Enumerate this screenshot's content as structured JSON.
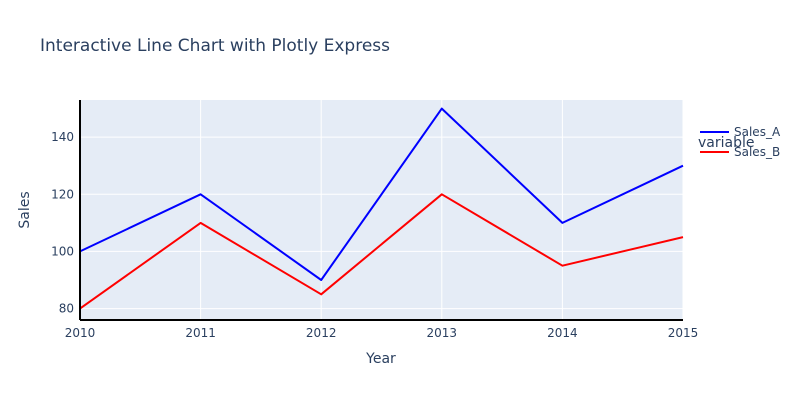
{
  "chart_data": {
    "type": "line",
    "title": "Interactive Line Chart with Plotly Express",
    "xlabel": "Year",
    "ylabel": "Sales",
    "x": [
      2010,
      2011,
      2012,
      2013,
      2014,
      2015
    ],
    "xlim": [
      2010,
      2015
    ],
    "ylim": [
      76,
      153
    ],
    "xticks": [
      "2010",
      "2011",
      "2012",
      "2013",
      "2014",
      "2015"
    ],
    "yticks": [
      "80",
      "100",
      "120",
      "140"
    ],
    "yticks_values": [
      80,
      100,
      120,
      140
    ],
    "grid": true,
    "legend": {
      "title": "variable",
      "placement": "top-right"
    },
    "series": [
      {
        "name": "Sales_A",
        "color": "#0000ff",
        "values": [
          100,
          120,
          90,
          150,
          110,
          130
        ]
      },
      {
        "name": "Sales_B",
        "color": "#ff0000",
        "values": [
          80,
          110,
          85,
          120,
          95,
          105
        ]
      }
    ]
  },
  "colors": {
    "plot_background": "#e5ecf6",
    "grid": "#ffffff",
    "axis_line": "#000000",
    "text": "#2a3f5f"
  }
}
